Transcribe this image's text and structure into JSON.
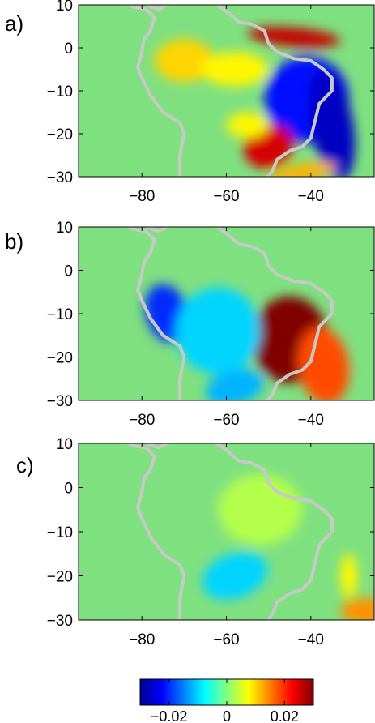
{
  "panels": [
    {
      "label": "a)",
      "y_ticks": [
        "10",
        "0",
        "−10",
        "−20",
        "−30"
      ],
      "x_ticks": [
        "−80",
        "−60",
        "−40"
      ],
      "anomalies": [
        {
          "lon": -44,
          "lat": 2.5,
          "value": 0.026,
          "rx": 11,
          "ry": 2.2,
          "rot": 5
        },
        {
          "lon": -41,
          "lat": -12,
          "value": -0.022,
          "rx": 10,
          "ry": 10,
          "rot": 20
        },
        {
          "lon": -35,
          "lat": -18,
          "value": -0.026,
          "rx": 5,
          "ry": 13,
          "rot": -10
        },
        {
          "lon": -50,
          "lat": -23,
          "value": 0.025,
          "rx": 6,
          "ry": 5,
          "rot": -20
        },
        {
          "lon": -42,
          "lat": -29,
          "value": 0.012,
          "rx": 8,
          "ry": 2,
          "rot": -10
        },
        {
          "lon": -70,
          "lat": -3,
          "value": 0.01,
          "rx": 7,
          "ry": 5,
          "rot": 0
        },
        {
          "lon": -58,
          "lat": -5,
          "value": 0.008,
          "rx": 8,
          "ry": 4,
          "rot": 0
        },
        {
          "lon": -55,
          "lat": -18,
          "value": 0.008,
          "rx": 5,
          "ry": 3,
          "rot": 0
        }
      ]
    },
    {
      "label": "b)",
      "y_ticks": [
        "10",
        "0",
        "−10",
        "−20",
        "−30"
      ],
      "x_ticks": [
        "−80",
        "−60",
        "−40"
      ],
      "anomalies": [
        {
          "lon": -45,
          "lat": -16,
          "value": 0.03,
          "rx": 9,
          "ry": 10,
          "rot": 0
        },
        {
          "lon": -37,
          "lat": -22,
          "value": 0.018,
          "rx": 6,
          "ry": 9,
          "rot": -10
        },
        {
          "lon": -74,
          "lat": -10,
          "value": -0.02,
          "rx": 5,
          "ry": 7,
          "rot": -20
        },
        {
          "lon": -62,
          "lat": -14,
          "value": -0.01,
          "rx": 10,
          "ry": 10,
          "rot": 0
        },
        {
          "lon": -58,
          "lat": -27,
          "value": -0.012,
          "rx": 7,
          "ry": 4,
          "rot": -15
        }
      ]
    },
    {
      "label": "c)",
      "y_ticks": [
        "10",
        "0",
        "−10",
        "−20",
        "−30"
      ],
      "x_ticks": [
        "−80",
        "−60",
        "−40"
      ],
      "anomalies": [
        {
          "lon": -60,
          "lat": -19,
          "value": -0.022,
          "rx": 4,
          "ry": 3,
          "rot": -20
        },
        {
          "lon": -58,
          "lat": -20,
          "value": -0.01,
          "rx": 8,
          "ry": 5,
          "rot": -20
        },
        {
          "lon": -27,
          "lat": -28,
          "value": 0.014,
          "rx": 6,
          "ry": 3,
          "rot": 0
        },
        {
          "lon": -31,
          "lat": -20,
          "value": 0.008,
          "rx": 2,
          "ry": 5,
          "rot": 0
        },
        {
          "lon": -52,
          "lat": -5,
          "value": 0.003,
          "rx": 10,
          "ry": 8,
          "rot": 0
        }
      ]
    }
  ],
  "map_extent": {
    "lon": [
      -95,
      -25
    ],
    "lat": [
      -30,
      10
    ]
  },
  "colorbar": {
    "ticks": [
      "−0.02",
      "0",
      "0.02"
    ],
    "tick_values": [
      -0.02,
      0,
      0.02
    ],
    "range": [
      -0.03,
      0.03
    ]
  },
  "colors": {
    "coast": "#c8c8c8",
    "background_field": "#7fe080"
  }
}
